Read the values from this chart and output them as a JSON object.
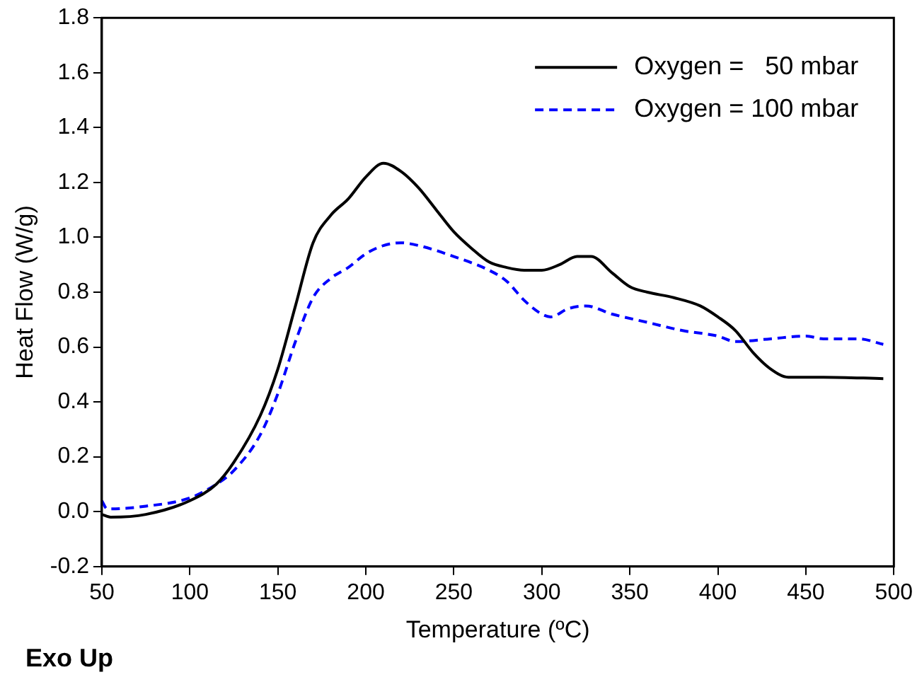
{
  "chart_data": {
    "type": "line",
    "xlabel": "Temperature (ºC)",
    "ylabel": "Heat Flow (W/g)",
    "annotations": [
      "Exo Up"
    ],
    "xlim": [
      50,
      500
    ],
    "xticks": [
      50,
      100,
      150,
      200,
      250,
      300,
      350,
      400,
      450,
      500
    ],
    "ylim": [
      -0.2,
      1.8
    ],
    "yticks": [
      -0.2,
      {
        "value": 0,
        "label": "0.0"
      },
      0.2,
      0.4,
      0.6,
      0.8,
      {
        "value": 1,
        "label": "1.0"
      },
      1.2,
      1.4,
      1.6,
      1.8
    ],
    "grid": false,
    "legend": "top right",
    "marker": "none",
    "series": [
      {
        "name": "Oxygen =   50 mbar",
        "color": "#000000",
        "line_style": "solid",
        "x": [
          50,
          55,
          75,
          100,
          115,
          125,
          140,
          150,
          160,
          170,
          180,
          190,
          200,
          210,
          220,
          230,
          240,
          250,
          260,
          270,
          280,
          290,
          300,
          310,
          320,
          328,
          340,
          350,
          360,
          375,
          390,
          400,
          410,
          420,
          430,
          440,
          460,
          494
        ],
        "values": [
          -0.01,
          -0.02,
          -0.01,
          0.04,
          0.1,
          0.18,
          0.35,
          0.52,
          0.75,
          0.98,
          1.08,
          1.14,
          1.22,
          1.27,
          1.24,
          1.18,
          1.1,
          1.02,
          0.96,
          0.91,
          0.89,
          0.88,
          0.88,
          0.9,
          0.93,
          0.93,
          0.87,
          0.82,
          0.8,
          0.78,
          0.75,
          0.71,
          0.66,
          0.58,
          0.52,
          0.49,
          0.49,
          0.485
        ]
      },
      {
        "name": "Oxygen = 100 mbar",
        "color": "#0000ff",
        "line_style": "dashed",
        "x": [
          50,
          53,
          75,
          100,
          115,
          125,
          140,
          150,
          160,
          170,
          180,
          190,
          200,
          210,
          220,
          230,
          250,
          270,
          280,
          290,
          300,
          305,
          315,
          325,
          340,
          360,
          380,
          400,
          410,
          430,
          450,
          460,
          480,
          494
        ],
        "values": [
          0.04,
          0.01,
          0.02,
          0.05,
          0.1,
          0.15,
          0.28,
          0.43,
          0.62,
          0.78,
          0.85,
          0.89,
          0.94,
          0.97,
          0.98,
          0.97,
          0.93,
          0.88,
          0.84,
          0.77,
          0.72,
          0.71,
          0.74,
          0.75,
          0.72,
          0.69,
          0.66,
          0.64,
          0.62,
          0.63,
          0.64,
          0.63,
          0.63,
          0.61
        ]
      }
    ]
  }
}
